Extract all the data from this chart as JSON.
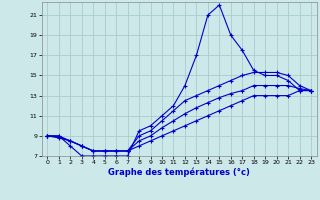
{
  "xlabel": "Graphe des températures (°c)",
  "bg_color": "#cce8e8",
  "grid_color": "#aacccc",
  "line_color": "#0000cc",
  "x_hours": [
    0,
    1,
    2,
    3,
    4,
    5,
    6,
    7,
    8,
    9,
    10,
    11,
    12,
    13,
    14,
    15,
    16,
    17,
    18,
    19,
    20,
    21,
    22,
    23
  ],
  "y_main": [
    9,
    9,
    8,
    7,
    7,
    7,
    7,
    7,
    9.5,
    10,
    11,
    12,
    14,
    17,
    21,
    22,
    19,
    17.5,
    15.5,
    15,
    15,
    14.5,
    13.5,
    13.5
  ],
  "y_line1": [
    9,
    8.8,
    8.5,
    8,
    7.5,
    7.5,
    7.5,
    7.5,
    8,
    8.5,
    9,
    9.5,
    10,
    10.5,
    11,
    11.5,
    12,
    12.5,
    13,
    13,
    13,
    13,
    13.5,
    13.5
  ],
  "y_line2": [
    9,
    9,
    8.5,
    8,
    7.5,
    7.5,
    7.5,
    7.5,
    9,
    9.5,
    10.5,
    11.5,
    12.5,
    13,
    13.5,
    14,
    14.5,
    15,
    15.3,
    15.3,
    15.3,
    15,
    14,
    13.5
  ],
  "y_line3": [
    9,
    8.9,
    8.5,
    8,
    7.5,
    7.5,
    7.5,
    7.5,
    8.5,
    9,
    9.8,
    10.5,
    11.2,
    11.8,
    12.3,
    12.8,
    13.2,
    13.5,
    14,
    14,
    14,
    14,
    13.7,
    13.5
  ],
  "ylim": [
    7,
    22
  ],
  "yticks": [
    7,
    9,
    11,
    13,
    15,
    17,
    19,
    21
  ],
  "xlim": [
    -0.5,
    23.5
  ],
  "xticks": [
    0,
    1,
    2,
    3,
    4,
    5,
    6,
    7,
    8,
    9,
    10,
    11,
    12,
    13,
    14,
    15,
    16,
    17,
    18,
    19,
    20,
    21,
    22,
    23
  ]
}
